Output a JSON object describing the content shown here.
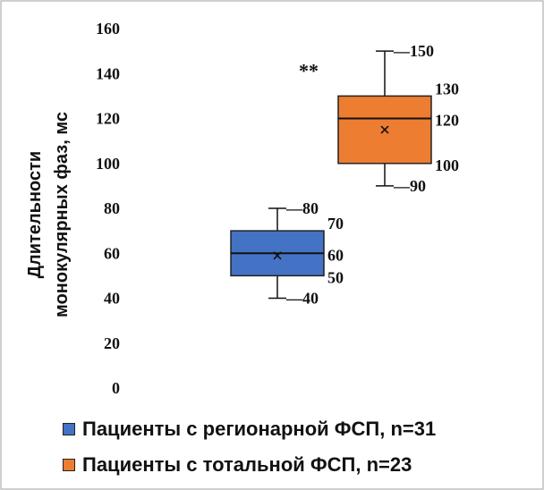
{
  "chart_data": {
    "type": "box",
    "ylabel_lines": [
      "Длительности",
      "монокулярных фаз, мс"
    ],
    "ylim": [
      0,
      160
    ],
    "yticks": [
      0,
      20,
      40,
      60,
      80,
      100,
      120,
      140,
      160
    ],
    "grid": false,
    "legend_position": "bottom",
    "series": [
      {
        "name": "Пациенты с регионарной ФСП, n=31",
        "color": "#4472c4",
        "min": 40,
        "q1": 50,
        "median": 60,
        "q3": 70,
        "max": 80,
        "mean": 59,
        "labels": {
          "max": "80",
          "q3": "70",
          "median": "60",
          "q1": "50",
          "min": "40"
        }
      },
      {
        "name": "Пациенты с тотальной ФСП, n=23",
        "color": "#ed7d31",
        "min": 90,
        "q1": 100,
        "median": 120,
        "q3": 130,
        "max": 150,
        "mean": 115,
        "labels": {
          "max": "150",
          "q3": "130",
          "median": "120",
          "q1": "100",
          "min": "90"
        }
      }
    ],
    "annotation": {
      "text": "**",
      "y": 140
    }
  }
}
